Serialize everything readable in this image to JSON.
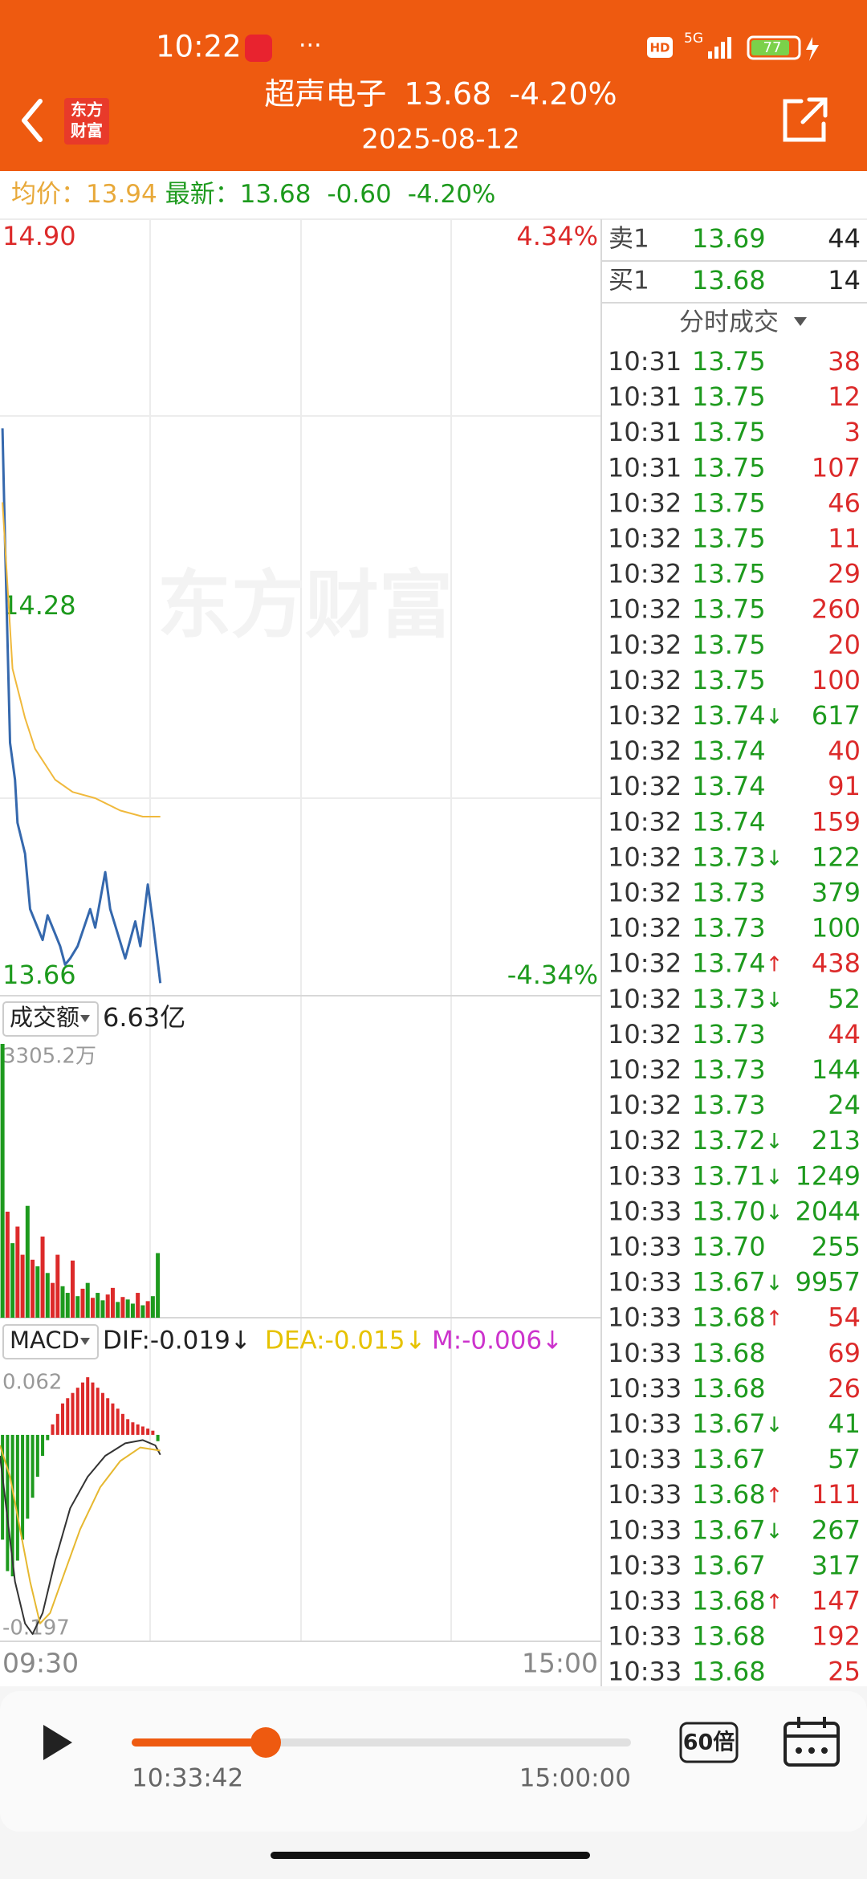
{
  "status_bar": {
    "time": "10:22",
    "more": "···",
    "hd": "HD",
    "network": "5G",
    "battery": "77"
  },
  "header": {
    "logo": [
      "东方",
      "财富"
    ],
    "name": "超声电子",
    "price": "13.68",
    "change": "-4.20%",
    "date": "2025-08-12"
  },
  "info_bar": {
    "avg_label": "均价：",
    "avg": "13.94",
    "latest_label": "最新：",
    "latest": "13.68",
    "change": "-0.60",
    "change_pct": "-4.20%"
  },
  "colors": {
    "up": "#dc2a2a",
    "down": "#1d9a1d",
    "neutral": "#999999"
  },
  "chart_data": [
    {
      "type": "line",
      "watermark": "东方财富",
      "series": [
        {
          "color": "#3568ad",
          "x": [
            1,
            2,
            4,
            6,
            7,
            10,
            12,
            14,
            17,
            19,
            22,
            24,
            26,
            28,
            31,
            36,
            38,
            42,
            44,
            47,
            50,
            54,
            56,
            59,
            61,
            64
          ],
          "values": [
            14.57,
            14.39,
            14.06,
            14.0,
            13.93,
            13.88,
            13.79,
            13.77,
            13.74,
            13.78,
            13.75,
            13.73,
            13.7,
            13.71,
            13.73,
            13.79,
            13.76,
            13.85,
            13.79,
            13.75,
            13.71,
            13.77,
            13.73,
            13.83,
            13.77,
            13.67
          ]
        },
        {
          "color": "#f0b93c",
          "x": [
            1,
            5,
            10,
            14,
            22,
            29,
            38,
            48,
            57,
            64
          ],
          "values": [
            14.45,
            14.18,
            14.1,
            14.05,
            14.0,
            13.98,
            13.97,
            13.95,
            13.94,
            13.94
          ]
        }
      ],
      "xlim": [
        0,
        240
      ],
      "ylim": [
        13.66,
        14.9
      ],
      "yticks": [
        13.66,
        14.28,
        {
          "value": 14.9,
          "label": "14.90"
        }
      ],
      "y2lim": [
        -4.34,
        4.34
      ],
      "y2ticks": [
        {
          "value": -4.34,
          "label": "-4.34%"
        },
        {
          "value": 4.34,
          "label": "4.34%"
        }
      ]
    },
    {
      "type": "bar",
      "selector": "成交额",
      "total": "6.63亿",
      "x": [
        1,
        3,
        5,
        7,
        9,
        11,
        13,
        15,
        17,
        19,
        21,
        23,
        25,
        27,
        29,
        31,
        33,
        35,
        37,
        39,
        41,
        43,
        45,
        47,
        49,
        51,
        53,
        55,
        57,
        59,
        61,
        63
      ],
      "values": [
        3305.2,
        1280,
        900,
        1100,
        760,
        1350,
        700,
        620,
        980,
        540,
        420,
        760,
        380,
        300,
        690,
        260,
        350,
        420,
        240,
        300,
        210,
        280,
        360,
        190,
        250,
        220,
        170,
        300,
        150,
        200,
        260,
        780
      ],
      "dirs": [
        "down",
        "up",
        "down",
        "up",
        "up",
        "down",
        "up",
        "down",
        "up",
        "down",
        "up",
        "up",
        "down",
        "down",
        "up",
        "down",
        "up",
        "down",
        "up",
        "down",
        "down",
        "up",
        "up",
        "down",
        "up",
        "down",
        "down",
        "up",
        "down",
        "up",
        "down",
        "down"
      ],
      "xlim": [
        0,
        240
      ],
      "ylim": [
        0,
        3305.2
      ],
      "yticks": [
        {
          "value": 3305.2,
          "label": "3305.2万"
        }
      ]
    },
    {
      "type": "macd",
      "selector": "MACD",
      "legend": [
        "DIF:-0.019↓",
        "DEA:-0.015↓",
        "M:-0.006↓"
      ],
      "legend_colors": [
        "#222222",
        "#e6c200",
        "#cc33cc"
      ],
      "x": [
        1,
        3,
        5,
        7,
        9,
        11,
        13,
        15,
        17,
        19,
        21,
        23,
        25,
        27,
        29,
        31,
        33,
        35,
        37,
        39,
        41,
        43,
        45,
        47,
        49,
        51,
        53,
        55,
        57,
        59,
        61,
        63
      ],
      "values": [
        -0.1,
        -0.13,
        -0.135,
        -0.12,
        -0.1,
        -0.08,
        -0.06,
        -0.04,
        -0.02,
        -0.005,
        0.01,
        0.02,
        0.03,
        0.035,
        0.04,
        0.045,
        0.05,
        0.055,
        0.05,
        0.045,
        0.04,
        0.035,
        0.03,
        0.025,
        0.02,
        0.015,
        0.012,
        0.01,
        0.008,
        0.006,
        0.004,
        -0.006
      ],
      "series": [
        {
          "color": "#333333",
          "x": [
            0,
            3,
            6,
            10,
            13,
            17,
            22,
            28,
            35,
            42,
            50,
            57,
            62,
            64
          ],
          "values": [
            -0.02,
            -0.08,
            -0.14,
            -0.18,
            -0.19,
            -0.17,
            -0.12,
            -0.07,
            -0.04,
            -0.02,
            -0.008,
            -0.005,
            -0.01,
            -0.019
          ]
        },
        {
          "color": "#e6b830",
          "x": [
            0,
            4,
            8,
            12,
            16,
            20,
            26,
            32,
            40,
            48,
            56,
            64
          ],
          "values": [
            -0.01,
            -0.04,
            -0.09,
            -0.14,
            -0.18,
            -0.17,
            -0.13,
            -0.09,
            -0.05,
            -0.025,
            -0.012,
            -0.015
          ]
        }
      ],
      "xlim": [
        0,
        240
      ],
      "xticks": [
        {
          "value": 0,
          "label": "09:30"
        },
        {
          "value": 240,
          "label": "15:00"
        }
      ],
      "ylim": [
        -0.197,
        0.062
      ],
      "yticks": [
        -0.197,
        0.062
      ]
    }
  ],
  "order_book": {
    "sell": {
      "label": "卖1",
      "price": "13.69",
      "volume": 44
    },
    "buy": {
      "label": "买1",
      "price": "13.68",
      "volume": 14
    }
  },
  "trades": {
    "title": "分时成交",
    "rows": [
      {
        "time": "10:31",
        "price": "13.75",
        "volume": 38,
        "dir": "up"
      },
      {
        "time": "10:31",
        "price": "13.75",
        "volume": 12,
        "dir": "up"
      },
      {
        "time": "10:31",
        "price": "13.75",
        "volume": 3,
        "dir": "up"
      },
      {
        "time": "10:31",
        "price": "13.75",
        "volume": 107,
        "dir": "up"
      },
      {
        "time": "10:32",
        "price": "13.75",
        "volume": 46,
        "dir": "up"
      },
      {
        "time": "10:32",
        "price": "13.75",
        "volume": 11,
        "dir": "up"
      },
      {
        "time": "10:32",
        "price": "13.75",
        "volume": 29,
        "dir": "up"
      },
      {
        "time": "10:32",
        "price": "13.75",
        "volume": 260,
        "dir": "up"
      },
      {
        "time": "10:32",
        "price": "13.75",
        "volume": 20,
        "dir": "up"
      },
      {
        "time": "10:32",
        "price": "13.75",
        "volume": 100,
        "dir": "up"
      },
      {
        "time": "10:32",
        "price": "13.74",
        "arrow": "↓",
        "volume": 617,
        "dir": "down"
      },
      {
        "time": "10:32",
        "price": "13.74",
        "volume": 40,
        "dir": "up"
      },
      {
        "time": "10:32",
        "price": "13.74",
        "volume": 91,
        "dir": "up"
      },
      {
        "time": "10:32",
        "price": "13.74",
        "volume": 159,
        "dir": "up"
      },
      {
        "time": "10:32",
        "price": "13.73",
        "arrow": "↓",
        "volume": 122,
        "dir": "down"
      },
      {
        "time": "10:32",
        "price": "13.73",
        "volume": 379,
        "dir": "down"
      },
      {
        "time": "10:32",
        "price": "13.73",
        "volume": 100,
        "dir": "down"
      },
      {
        "time": "10:32",
        "price": "13.74",
        "arrow": "↑",
        "volume": 438,
        "dir": "up"
      },
      {
        "time": "10:32",
        "price": "13.73",
        "arrow": "↓",
        "volume": 52,
        "dir": "down"
      },
      {
        "time": "10:32",
        "price": "13.73",
        "volume": 44,
        "dir": "up"
      },
      {
        "time": "10:32",
        "price": "13.73",
        "volume": 144,
        "dir": "down"
      },
      {
        "time": "10:32",
        "price": "13.73",
        "volume": 24,
        "dir": "down"
      },
      {
        "time": "10:32",
        "price": "13.72",
        "arrow": "↓",
        "volume": 213,
        "dir": "down"
      },
      {
        "time": "10:33",
        "price": "13.71",
        "arrow": "↓",
        "volume": 1249,
        "dir": "down"
      },
      {
        "time": "10:33",
        "price": "13.70",
        "arrow": "↓",
        "volume": 2044,
        "dir": "down"
      },
      {
        "time": "10:33",
        "price": "13.70",
        "volume": 255,
        "dir": "down"
      },
      {
        "time": "10:33",
        "price": "13.67",
        "arrow": "↓",
        "volume": 9957,
        "dir": "down"
      },
      {
        "time": "10:33",
        "price": "13.68",
        "arrow": "↑",
        "volume": 54,
        "dir": "up"
      },
      {
        "time": "10:33",
        "price": "13.68",
        "volume": 69,
        "dir": "up"
      },
      {
        "time": "10:33",
        "price": "13.68",
        "volume": 26,
        "dir": "up"
      },
      {
        "time": "10:33",
        "price": "13.67",
        "arrow": "↓",
        "volume": 41,
        "dir": "down"
      },
      {
        "time": "10:33",
        "price": "13.67",
        "volume": 57,
        "dir": "down"
      },
      {
        "time": "10:33",
        "price": "13.68",
        "arrow": "↑",
        "volume": 111,
        "dir": "up"
      },
      {
        "time": "10:33",
        "price": "13.67",
        "arrow": "↓",
        "volume": 267,
        "dir": "down"
      },
      {
        "time": "10:33",
        "price": "13.67",
        "volume": 317,
        "dir": "down"
      },
      {
        "time": "10:33",
        "price": "13.68",
        "arrow": "↑",
        "volume": 147,
        "dir": "up"
      },
      {
        "time": "10:33",
        "price": "13.68",
        "volume": 192,
        "dir": "up"
      },
      {
        "time": "10:33",
        "price": "13.68",
        "volume": 25,
        "dir": "up"
      }
    ]
  },
  "player": {
    "current": "10:33:42",
    "end": "15:00:00",
    "speed": "60倍"
  }
}
